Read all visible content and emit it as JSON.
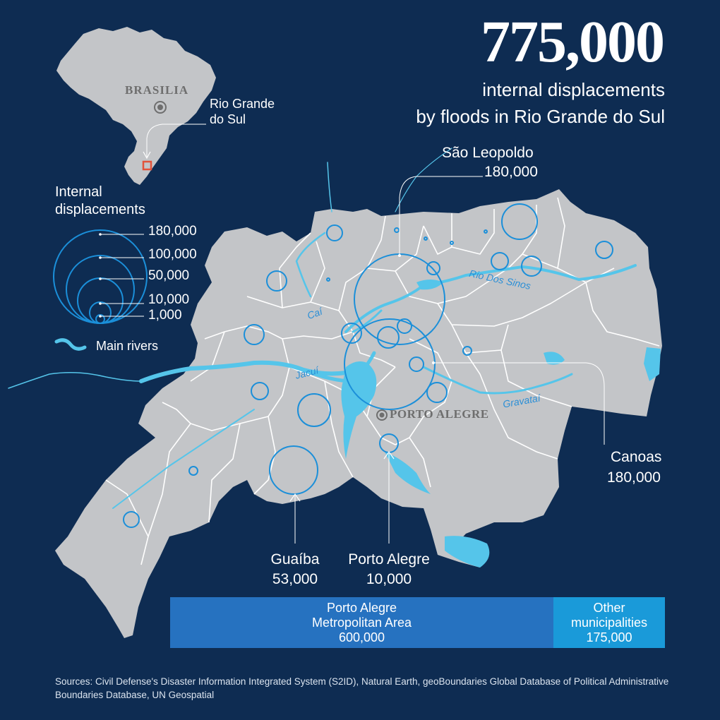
{
  "headline": {
    "number": "775,000",
    "line1": "internal displacements",
    "line2": "by floods in Rio Grande do Sul"
  },
  "inset": {
    "capital": "BRASILIA",
    "state_line1": "Rio Grande",
    "state_line2": "do Sul"
  },
  "legend": {
    "title_line1": "Internal",
    "title_line2": "displacements",
    "sizes": [
      "180,000",
      "100,000",
      "50,000",
      "10,000",
      "1,000"
    ],
    "rivers_label": "Main rivers"
  },
  "map": {
    "city_label": "PORTO ALEGRE",
    "rivers": [
      "Rio Dos Sinos",
      "Caí",
      "Jacuí",
      "Gravataí"
    ]
  },
  "callouts": {
    "sao_leopoldo": {
      "name": "São Leopoldo",
      "value": "180,000"
    },
    "canoas": {
      "name": "Canoas",
      "value": "180,000"
    },
    "guaiba": {
      "name": "Guaíba",
      "value": "53,000"
    },
    "porto_alegre": {
      "name": "Porto Alegre",
      "value": "10,000"
    }
  },
  "breakdown": {
    "metro": {
      "line1": "Porto Alegre",
      "line2": "Metropolitan Area",
      "value": "600,000",
      "amount": 600000,
      "color": "#2672c0"
    },
    "other": {
      "line1": "Other",
      "line2": "municipalities",
      "value": "175,000",
      "amount": 175000,
      "color": "#1a9ad9"
    }
  },
  "sources": "Sources: Civil Defense's Disaster Information Integrated System (S2ID), Natural Earth, geoBoundaries Global Database of Political Administrative Boundaries Database, UN Geospatial",
  "colors": {
    "background": "#0e2c52",
    "land": "#c3c5c8",
    "water": "#55c5ea",
    "circle": "#1b8fd9",
    "highlight": "#e2523a"
  }
}
